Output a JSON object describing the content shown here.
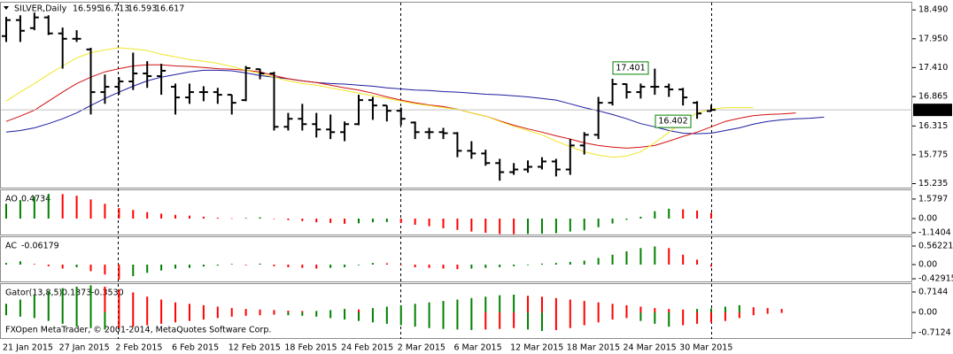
{
  "copyright": "FXOpen MetaTrader, © 2001-2014, MetaQuotes Software Corp.",
  "chart_data": [
    {
      "type": "ohlc",
      "title": "SILVER,Daily",
      "bar_color": "#000000",
      "categories": [
        "21 Jan 2015",
        null,
        null,
        null,
        "27 Jan 2015",
        null,
        null,
        null,
        "2 Feb 2015",
        null,
        null,
        null,
        "6 Feb 2015",
        null,
        null,
        null,
        "12 Feb 2015",
        null,
        null,
        null,
        "18 Feb 2015",
        null,
        null,
        null,
        "24 Feb 2015",
        null,
        null,
        null,
        "2 Mar 2015",
        null,
        null,
        null,
        "6 Mar 2015",
        null,
        null,
        null,
        "12 Mar 2015",
        null,
        null,
        null,
        "18 Mar 2015",
        null,
        null,
        null,
        "24 Mar 2015",
        null,
        null,
        null,
        "30 Mar 2015",
        null,
        null,
        null,
        null,
        null,
        null,
        null,
        null,
        null,
        null
      ],
      "open": [
        18.0,
        18.3,
        18.15,
        18.35,
        18.05,
        17.95,
        17.75,
        16.95,
        17.05,
        17.15,
        17.3,
        17.25,
        17.05,
        16.85,
        16.95,
        16.95,
        16.9,
        16.8,
        17.38,
        17.3,
        16.3,
        16.45,
        16.35,
        16.25,
        16.2,
        16.35,
        16.8,
        16.7,
        16.6,
        16.38,
        16.2,
        16.2,
        16.18,
        15.85,
        15.8,
        15.62,
        15.45,
        15.5,
        15.55,
        15.65,
        15.5,
        15.95,
        16.15,
        16.75,
        17.1,
        16.95,
        17.05,
        17.05,
        17.0,
        16.75,
        16.595,
        null,
        null,
        null,
        null,
        null,
        null,
        null,
        null
      ],
      "high": [
        18.36,
        18.39,
        18.44,
        18.39,
        18.16,
        18.11,
        17.78,
        17.28,
        17.23,
        17.69,
        17.53,
        17.48,
        17.11,
        17.11,
        17.06,
        17.03,
        16.9,
        17.44,
        17.39,
        17.33,
        16.56,
        16.73,
        16.56,
        16.53,
        16.4,
        16.9,
        16.86,
        16.7,
        16.66,
        16.4,
        16.28,
        16.28,
        16.2,
        16.03,
        15.87,
        15.7,
        15.62,
        15.67,
        15.73,
        15.7,
        16.07,
        16.2,
        16.86,
        17.2,
        17.11,
        17.11,
        17.39,
        17.11,
        17.03,
        16.78,
        16.713,
        null,
        null,
        null,
        null,
        null,
        null,
        null,
        null
      ],
      "low": [
        17.89,
        17.89,
        18.11,
        18.02,
        17.39,
        17.89,
        16.53,
        16.73,
        16.9,
        16.99,
        17.03,
        16.9,
        16.53,
        16.73,
        16.78,
        16.73,
        16.53,
        16.78,
        17.19,
        16.23,
        16.23,
        16.23,
        16.1,
        16.07,
        16.03,
        16.33,
        16.43,
        16.4,
        16.33,
        16.07,
        16.07,
        16.07,
        15.73,
        15.7,
        15.57,
        15.29,
        15.4,
        15.44,
        15.5,
        15.37,
        15.4,
        15.78,
        16.07,
        16.7,
        16.83,
        16.83,
        16.9,
        16.86,
        16.7,
        16.45,
        16.593,
        null,
        null,
        null,
        null,
        null,
        null,
        null,
        null
      ],
      "close": [
        18.3,
        18.1,
        18.35,
        18.05,
        17.95,
        17.95,
        16.95,
        17.05,
        17.15,
        17.3,
        17.25,
        17.35,
        16.85,
        16.95,
        16.95,
        16.9,
        16.75,
        17.4,
        17.3,
        16.3,
        16.45,
        16.35,
        16.25,
        16.2,
        16.35,
        16.8,
        16.7,
        16.6,
        16.45,
        16.2,
        16.2,
        16.18,
        15.85,
        15.8,
        15.62,
        15.45,
        15.5,
        15.55,
        15.65,
        15.5,
        15.95,
        16.15,
        16.75,
        17.1,
        16.95,
        17.05,
        17.05,
        17.0,
        16.85,
        16.55,
        16.617,
        null,
        null,
        null,
        null,
        null,
        null,
        null,
        null
      ],
      "series": [
        {
          "color": "#1c1ca0",
          "values": [
            16.2,
            16.23,
            16.28,
            16.36,
            16.45,
            16.56,
            16.7,
            16.83,
            16.95,
            17.06,
            17.16,
            17.23,
            17.28,
            17.33,
            17.36,
            17.36,
            17.35,
            17.31,
            17.26,
            17.23,
            17.2,
            17.16,
            17.13,
            17.11,
            17.1,
            17.08,
            17.06,
            17.03,
            17.01,
            16.99,
            16.98,
            16.96,
            16.95,
            16.93,
            16.91,
            16.9,
            16.88,
            16.86,
            16.83,
            16.8,
            16.73,
            16.66,
            16.6,
            16.53,
            16.45,
            16.36,
            16.3,
            16.23,
            16.18,
            16.17,
            16.18,
            16.23,
            16.28,
            16.35,
            16.4,
            16.43,
            16.45,
            16.46,
            16.48
          ]
        },
        {
          "color": "#d01010",
          "values": [
            16.4,
            16.5,
            16.61,
            16.78,
            16.95,
            17.11,
            17.23,
            17.33,
            17.39,
            17.44,
            17.46,
            17.46,
            17.44,
            17.43,
            17.41,
            17.39,
            17.38,
            17.36,
            17.33,
            17.26,
            17.2,
            17.16,
            17.13,
            17.08,
            17.03,
            16.99,
            16.93,
            16.86,
            16.8,
            16.75,
            16.71,
            16.68,
            16.63,
            16.56,
            16.5,
            16.41,
            16.33,
            16.26,
            16.2,
            16.13,
            16.07,
            16.0,
            15.95,
            15.92,
            15.9,
            15.92,
            15.95,
            16.03,
            16.12,
            16.2,
            16.3,
            16.4,
            16.46,
            16.51,
            16.53,
            16.54,
            16.56,
            null,
            null
          ]
        },
        {
          "color": "#f0e626",
          "values": [
            16.78,
            16.95,
            17.11,
            17.28,
            17.44,
            17.59,
            17.69,
            17.74,
            17.78,
            17.76,
            17.73,
            17.66,
            17.61,
            17.56,
            17.53,
            17.49,
            17.43,
            17.36,
            17.3,
            17.23,
            17.16,
            17.11,
            17.08,
            17.03,
            16.98,
            16.93,
            16.88,
            16.83,
            16.78,
            16.73,
            16.7,
            16.66,
            16.63,
            16.56,
            16.5,
            16.4,
            16.31,
            16.23,
            16.15,
            16.03,
            15.93,
            15.83,
            15.77,
            15.73,
            15.75,
            15.83,
            16.0,
            16.2,
            16.4,
            16.56,
            16.63,
            16.66,
            16.66,
            16.66,
            null,
            null,
            null,
            null,
            null
          ]
        }
      ],
      "annotations": [
        17.401,
        16.402
      ],
      "annotation_color": "#008000",
      "ylim": [
        15.16,
        18.61
      ],
      "yticks": [
        {
          "value": 18.49,
          "label": "18.490"
        },
        {
          "value": 17.95,
          "label": "17.950"
        },
        {
          "value": 17.41,
          "label": "17.410"
        },
        16.865,
        16.315,
        15.775,
        15.235
      ]
    },
    {
      "type": "oscillator",
      "title": "AO",
      "up_color": "#008000",
      "down_color": "#ff0000",
      "values": [
        1.2,
        1.5,
        1.8,
        2.0,
        1.98,
        1.85,
        1.55,
        1.2,
        0.85,
        0.7,
        0.52,
        0.4,
        0.3,
        0.24,
        0.15,
        0.07,
        0.02,
        0.05,
        0.1,
        -0.02,
        -0.12,
        -0.2,
        -0.3,
        -0.35,
        -0.42,
        -0.38,
        -0.3,
        -0.28,
        -0.35,
        -0.5,
        -0.62,
        -0.78,
        -0.92,
        -1.05,
        -1.15,
        -1.25,
        -1.26,
        -1.24,
        -1.22,
        -1.18,
        -1.05,
        -0.95,
        -0.7,
        -0.4,
        -0.1,
        0.15,
        0.6,
        0.8,
        0.75,
        0.65,
        0.4734,
        null,
        null,
        null,
        null,
        null,
        null,
        null,
        null
      ],
      "ylim": [
        -1.29,
        2.29
      ],
      "yticks": [
        1.5797,
        {
          "value": 0,
          "label": "0.00"
        },
        -1.1404
      ]
    },
    {
      "type": "oscillator",
      "title": "AC",
      "up_color": "#008000",
      "down_color": "#ff0000",
      "values": [
        0.05,
        0.1,
        0.02,
        -0.05,
        -0.12,
        -0.08,
        -0.2,
        -0.3,
        -0.45,
        -0.35,
        -0.25,
        -0.18,
        -0.12,
        -0.1,
        -0.06,
        -0.03,
        0.02,
        -0.02,
        0.03,
        -0.05,
        -0.08,
        -0.1,
        -0.12,
        -0.1,
        -0.08,
        -0.02,
        0.05,
        0.04,
        -0.02,
        -0.08,
        -0.1,
        -0.12,
        -0.14,
        -0.12,
        -0.1,
        -0.08,
        -0.05,
        -0.02,
        0.03,
        0.05,
        0.08,
        0.12,
        0.2,
        0.3,
        0.4,
        0.5,
        0.55,
        0.5,
        0.3,
        0.15,
        -0.06179,
        null,
        null,
        null,
        null,
        null,
        null,
        null,
        null
      ],
      "ylim": [
        -0.51,
        0.83
      ],
      "yticks": [
        0.56221,
        {
          "value": 0,
          "label": "0.00"
        },
        -0.42915
      ]
    },
    {
      "type": "gator",
      "title": "Gator(13,8,5)",
      "up_color": "#008000",
      "down_color": "#ff0000",
      "series": [
        {
          "values": [
            0.3,
            0.45,
            0.6,
            0.75,
            0.85,
            0.9,
            0.95,
            0.9,
            0.8,
            0.7,
            0.55,
            0.45,
            0.35,
            0.3,
            0.25,
            0.2,
            0.15,
            0.12,
            0.1,
            0.08,
            0.06,
            0.05,
            0.05,
            0.08,
            0.12,
            0.1,
            0.15,
            0.2,
            0.25,
            0.3,
            0.35,
            0.4,
            0.45,
            0.5,
            0.55,
            0.6,
            0.62,
            0.58,
            0.55,
            0.5,
            0.45,
            0.4,
            0.35,
            0.3,
            0.25,
            0.2,
            0.15,
            0.12,
            0.1,
            0.12,
            0.1373,
            0.2,
            0.25,
            0.18,
            0.15,
            0.12,
            null,
            null,
            null
          ]
        },
        {
          "values": [
            -0.1,
            -0.15,
            -0.2,
            -0.3,
            -0.4,
            -0.5,
            -0.55,
            -0.6,
            -0.55,
            -0.5,
            -0.45,
            -0.4,
            -0.35,
            -0.3,
            -0.25,
            -0.2,
            -0.15,
            -0.12,
            -0.1,
            -0.08,
            -0.1,
            -0.12,
            -0.15,
            -0.2,
            -0.25,
            -0.3,
            -0.35,
            -0.4,
            -0.45,
            -0.5,
            -0.55,
            -0.58,
            -0.6,
            -0.62,
            -0.6,
            -0.58,
            -0.55,
            -0.6,
            -0.65,
            -0.62,
            -0.55,
            -0.45,
            -0.35,
            -0.25,
            -0.2,
            -0.3,
            -0.4,
            -0.5,
            -0.45,
            -0.4,
            -0.353,
            -0.3,
            -0.2,
            -0.1,
            -0.05,
            -0.02,
            null,
            null,
            null
          ],
          "value_labels": [
            null,
            null,
            null,
            null,
            null,
            null,
            null,
            null,
            null,
            null,
            null,
            null,
            null,
            null,
            null,
            null,
            null,
            null,
            null,
            null,
            null,
            null,
            null,
            null,
            null,
            null,
            null,
            null,
            null,
            null,
            null,
            null,
            null,
            null,
            null,
            null,
            null,
            null,
            null,
            null,
            null,
            null,
            null,
            null,
            null,
            null,
            null,
            null,
            null,
            null,
            "-0.3530",
            null,
            null,
            null,
            null,
            null,
            null,
            null,
            null
          ]
        }
      ],
      "ylim": [
        -0.9,
        0.96
      ],
      "yticks": [
        0.7144,
        {
          "value": 0,
          "label": "0.00"
        },
        -0.7124
      ]
    }
  ]
}
